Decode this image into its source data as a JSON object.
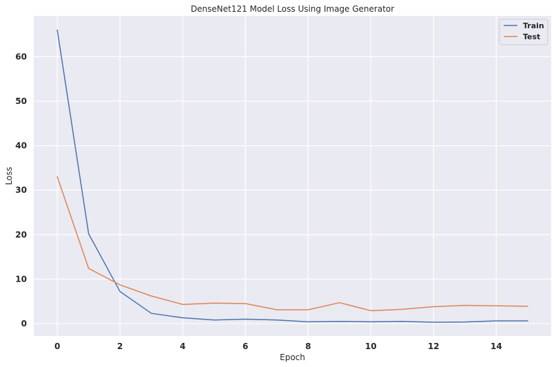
{
  "chart_data": {
    "type": "line",
    "title": "DenseNet121 Model Loss Using Image Generator",
    "xlabel": "Epoch",
    "ylabel": "Loss",
    "x": [
      0,
      1,
      2,
      3,
      4,
      5,
      6,
      7,
      8,
      9,
      10,
      11,
      12,
      13,
      14,
      15
    ],
    "xlim": [
      -0.75,
      15.75
    ],
    "ylim": [
      -2.8,
      69.2
    ],
    "xticks": [
      0,
      2,
      4,
      6,
      8,
      10,
      12,
      14
    ],
    "yticks": [
      0,
      10,
      20,
      30,
      40,
      50,
      60
    ],
    "grid": true,
    "legend_position": "top-right",
    "series": [
      {
        "name": "Train",
        "color": "#4c72b0",
        "values": [
          66.0,
          20.2,
          7.2,
          2.3,
          1.3,
          0.8,
          1.0,
          0.8,
          0.4,
          0.5,
          0.4,
          0.5,
          0.3,
          0.35,
          0.6,
          0.6
        ]
      },
      {
        "name": "Test",
        "color": "#dd8452",
        "values": [
          33.0,
          12.4,
          8.7,
          6.2,
          4.3,
          4.6,
          4.5,
          3.1,
          3.1,
          4.7,
          2.9,
          3.2,
          3.8,
          4.1,
          4.0,
          3.9
        ]
      }
    ]
  }
}
